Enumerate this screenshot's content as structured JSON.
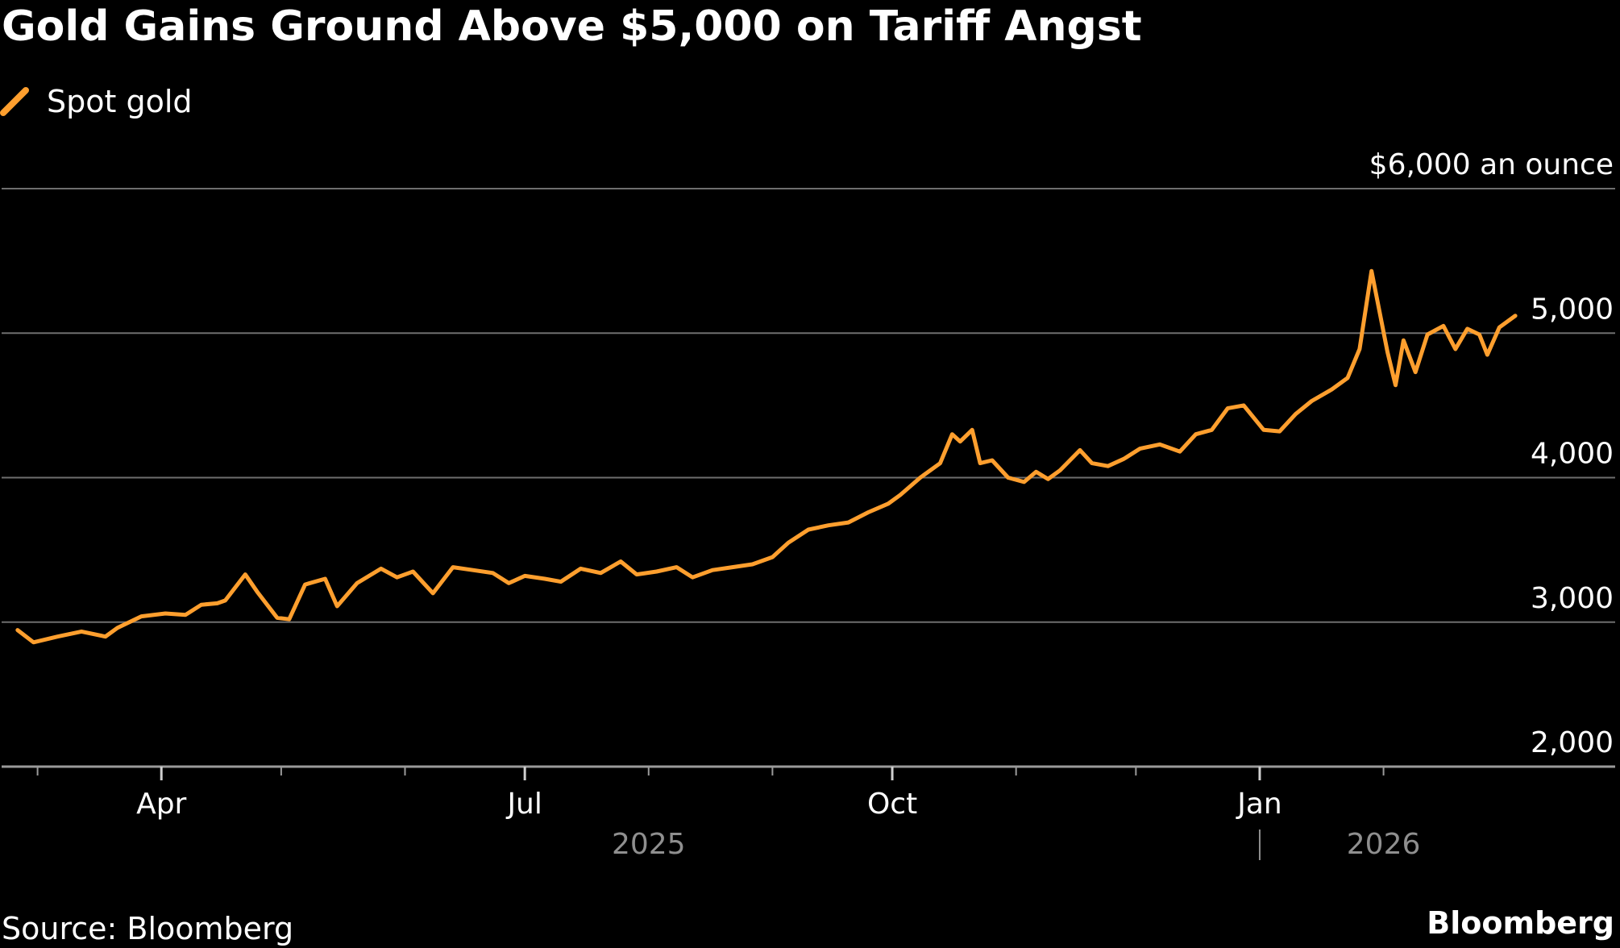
{
  "title": "Gold Gains Ground Above $5,000 on Tariff Angst",
  "source": "Source: Bloomberg",
  "brand": "Bloomberg",
  "colors": {
    "background": "#000000",
    "series": "#ff9f2e",
    "grid": "#6e6e6e",
    "text": "#ffffff",
    "muted": "#8f8f8f"
  },
  "chart_data": {
    "type": "line",
    "xlabel": "",
    "ylabel": "",
    "y_unit_label": "$6,000 an ounce",
    "ylim": [
      2000,
      6000
    ],
    "yticks": [
      2000,
      3000,
      4000,
      5000,
      6000
    ],
    "ytick_labels": [
      "2,000",
      "3,000",
      "4,000",
      "5,000",
      "$6,000 an ounce"
    ],
    "xlim": [
      "2025-02-20",
      "2026-03-31"
    ],
    "xticks_labeled": [
      {
        "date": "2025-04-01",
        "label": "Apr"
      },
      {
        "date": "2025-07-01",
        "label": "Jul"
      },
      {
        "date": "2025-10-01",
        "label": "Oct"
      },
      {
        "date": "2026-01-01",
        "label": "Jan"
      }
    ],
    "xticks_minor": [
      "2025-03-01",
      "2025-05-01",
      "2025-06-01",
      "2025-08-01",
      "2025-09-01",
      "2025-11-01",
      "2025-12-01",
      "2026-02-01"
    ],
    "year_labels": [
      {
        "label": "2025",
        "date": "2025-08-01"
      },
      {
        "label": "2026",
        "date": "2026-02-01"
      }
    ],
    "grid": true,
    "legend": "top-left",
    "series": [
      {
        "name": "Spot gold",
        "color": "#ff9f2e",
        "points": [
          [
            "2025-02-24",
            2945
          ],
          [
            "2025-02-28",
            2860
          ],
          [
            "2025-03-06",
            2900
          ],
          [
            "2025-03-12",
            2935
          ],
          [
            "2025-03-18",
            2900
          ],
          [
            "2025-03-21",
            2960
          ],
          [
            "2025-03-27",
            3040
          ],
          [
            "2025-04-02",
            3060
          ],
          [
            "2025-04-07",
            3050
          ],
          [
            "2025-04-11",
            3120
          ],
          [
            "2025-04-15",
            3130
          ],
          [
            "2025-04-17",
            3150
          ],
          [
            "2025-04-22",
            3330
          ],
          [
            "2025-04-25",
            3210
          ],
          [
            "2025-04-30",
            3030
          ],
          [
            "2025-05-03",
            3020
          ],
          [
            "2025-05-07",
            3260
          ],
          [
            "2025-05-12",
            3300
          ],
          [
            "2025-05-15",
            3110
          ],
          [
            "2025-05-20",
            3270
          ],
          [
            "2025-05-26",
            3370
          ],
          [
            "2025-05-30",
            3310
          ],
          [
            "2025-06-03",
            3350
          ],
          [
            "2025-06-08",
            3200
          ],
          [
            "2025-06-13",
            3380
          ],
          [
            "2025-06-18",
            3360
          ],
          [
            "2025-06-23",
            3340
          ],
          [
            "2025-06-27",
            3270
          ],
          [
            "2025-07-01",
            3320
          ],
          [
            "2025-07-06",
            3300
          ],
          [
            "2025-07-10",
            3280
          ],
          [
            "2025-07-15",
            3370
          ],
          [
            "2025-07-20",
            3340
          ],
          [
            "2025-07-25",
            3420
          ],
          [
            "2025-07-29",
            3330
          ],
          [
            "2025-08-03",
            3350
          ],
          [
            "2025-08-08",
            3380
          ],
          [
            "2025-08-12",
            3310
          ],
          [
            "2025-08-17",
            3360
          ],
          [
            "2025-08-22",
            3380
          ],
          [
            "2025-08-27",
            3400
          ],
          [
            "2025-09-01",
            3450
          ],
          [
            "2025-09-05",
            3550
          ],
          [
            "2025-09-10",
            3640
          ],
          [
            "2025-09-15",
            3670
          ],
          [
            "2025-09-20",
            3690
          ],
          [
            "2025-09-25",
            3760
          ],
          [
            "2025-09-30",
            3820
          ],
          [
            "2025-10-03",
            3880
          ],
          [
            "2025-10-08",
            4000
          ],
          [
            "2025-10-13",
            4100
          ],
          [
            "2025-10-16",
            4300
          ],
          [
            "2025-10-18",
            4250
          ],
          [
            "2025-10-21",
            4330
          ],
          [
            "2025-10-23",
            4100
          ],
          [
            "2025-10-26",
            4120
          ],
          [
            "2025-10-30",
            4000
          ],
          [
            "2025-11-03",
            3970
          ],
          [
            "2025-11-06",
            4040
          ],
          [
            "2025-11-09",
            3990
          ],
          [
            "2025-11-12",
            4050
          ],
          [
            "2025-11-17",
            4190
          ],
          [
            "2025-11-20",
            4100
          ],
          [
            "2025-11-24",
            4080
          ],
          [
            "2025-11-28",
            4130
          ],
          [
            "2025-12-02",
            4200
          ],
          [
            "2025-12-07",
            4230
          ],
          [
            "2025-12-12",
            4180
          ],
          [
            "2025-12-16",
            4300
          ],
          [
            "2025-12-20",
            4330
          ],
          [
            "2025-12-24",
            4480
          ],
          [
            "2025-12-28",
            4500
          ],
          [
            "2026-01-02",
            4330
          ],
          [
            "2026-01-06",
            4320
          ],
          [
            "2026-01-10",
            4440
          ],
          [
            "2026-01-14",
            4530
          ],
          [
            "2026-01-19",
            4610
          ],
          [
            "2026-01-23",
            4690
          ],
          [
            "2026-01-26",
            4890
          ],
          [
            "2026-01-29",
            5430
          ],
          [
            "2026-02-02",
            4870
          ],
          [
            "2026-02-04",
            4640
          ],
          [
            "2026-02-06",
            4950
          ],
          [
            "2026-02-09",
            4730
          ],
          [
            "2026-02-12",
            4990
          ],
          [
            "2026-02-16",
            5050
          ],
          [
            "2026-02-19",
            4890
          ],
          [
            "2026-02-22",
            5030
          ],
          [
            "2026-02-25",
            4990
          ],
          [
            "2026-02-27",
            4850
          ],
          [
            "2026-03-02",
            5040
          ],
          [
            "2026-03-06",
            5120
          ]
        ]
      }
    ]
  }
}
